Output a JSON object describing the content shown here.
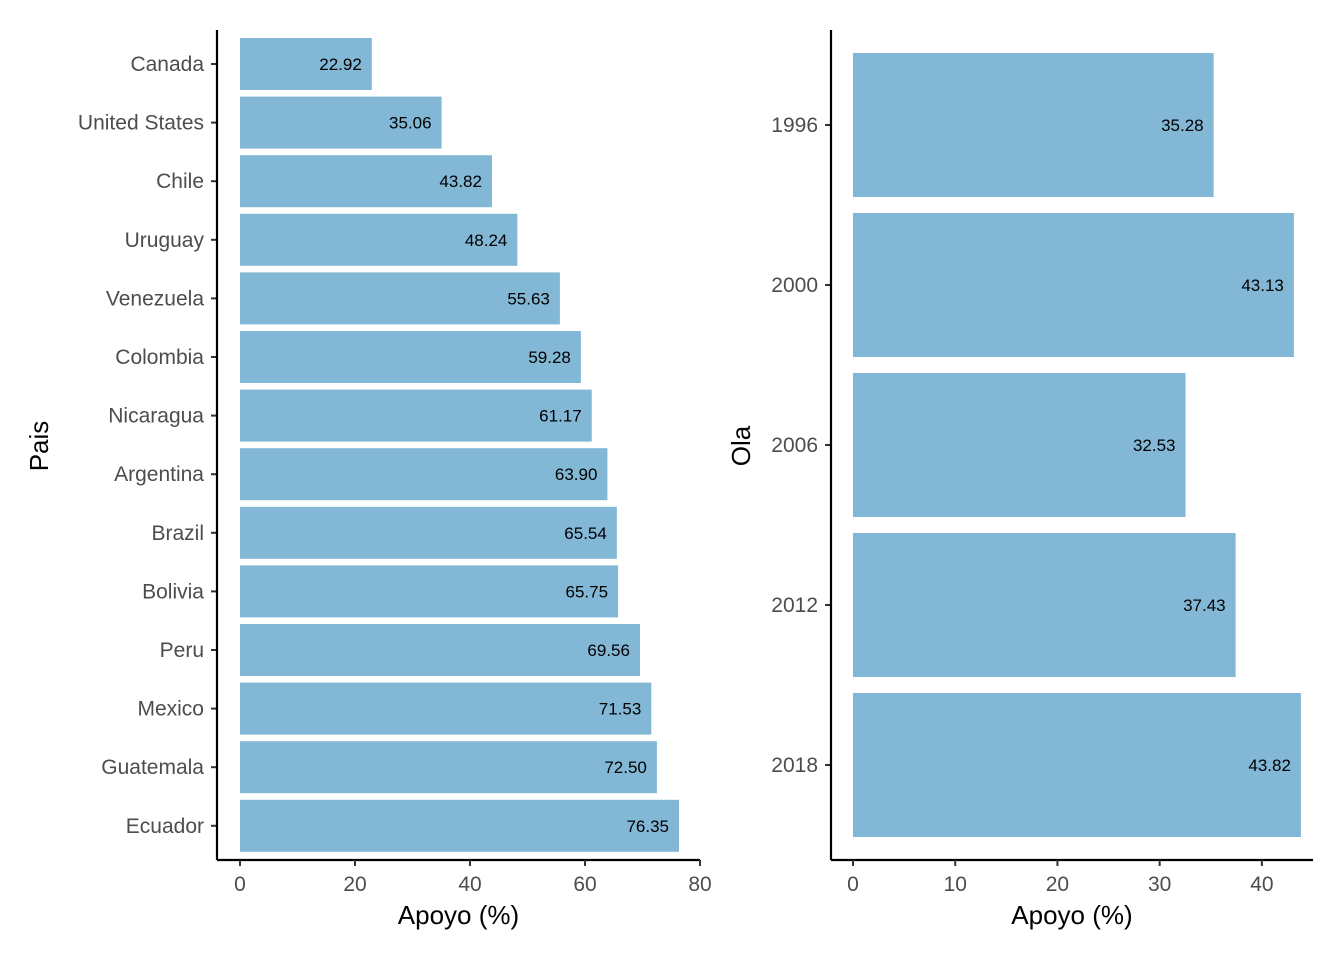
{
  "colors": {
    "bar": "#82b7d6",
    "axis": "#000000",
    "tick_text": "#4d4d4d",
    "label_text": "#000000"
  },
  "chart_data": [
    {
      "type": "bar",
      "orientation": "horizontal",
      "title": "",
      "xlabel": "Apoyo (%)",
      "ylabel": "Pais",
      "xlim": [
        0,
        80
      ],
      "xticks": [
        0,
        20,
        40,
        60,
        80
      ],
      "categories": [
        "Canada",
        "United States",
        "Chile",
        "Uruguay",
        "Venezuela",
        "Colombia",
        "Nicaragua",
        "Argentina",
        "Brazil",
        "Bolivia",
        "Peru",
        "Mexico",
        "Guatemala",
        "Ecuador"
      ],
      "values": [
        22.92,
        35.06,
        43.82,
        48.24,
        55.63,
        59.28,
        61.17,
        63.9,
        65.54,
        65.75,
        69.56,
        71.53,
        72.5,
        76.35
      ],
      "value_labels": [
        "22.92",
        "35.06",
        "43.82",
        "48.24",
        "55.63",
        "59.28",
        "61.17",
        "63.90",
        "65.54",
        "65.75",
        "69.56",
        "71.53",
        "72.50",
        "76.35"
      ],
      "grid": false
    },
    {
      "type": "bar",
      "orientation": "horizontal",
      "title": "",
      "xlabel": "Apoyo (%)",
      "ylabel": "Ola",
      "xlim": [
        0,
        45
      ],
      "xticks": [
        0,
        10,
        20,
        30,
        40
      ],
      "categories": [
        "1996",
        "2000",
        "2006",
        "2012",
        "2018"
      ],
      "values": [
        35.28,
        43.13,
        32.53,
        37.43,
        43.82
      ],
      "value_labels": [
        "35.28",
        "43.13",
        "32.53",
        "37.43",
        "43.82"
      ],
      "grid": false
    }
  ]
}
